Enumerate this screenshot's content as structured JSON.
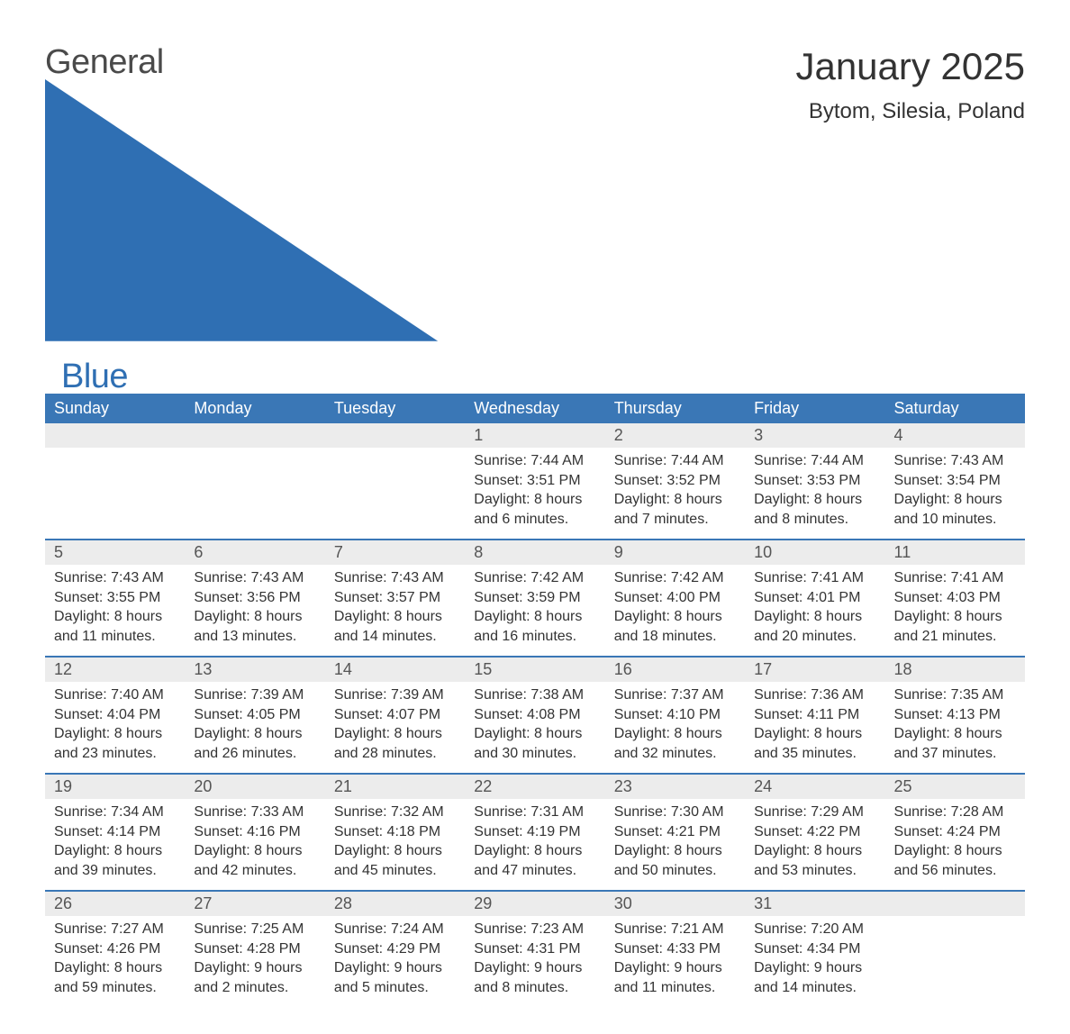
{
  "logo": {
    "word1": "General",
    "word2": "Blue"
  },
  "title": "January 2025",
  "location": "Bytom, Silesia, Poland",
  "colors": {
    "header_bg": "#3a77b6",
    "header_text": "#ffffff",
    "daynum_bg": "#ececec",
    "daynum_text": "#555555",
    "body_text": "#333333",
    "page_bg": "#ffffff",
    "logo_gray": "#4a4a4a",
    "logo_blue": "#2f6fb3"
  },
  "fonts": {
    "title_size_pt": 42,
    "location_size_pt": 24,
    "header_size_pt": 18,
    "daynum_size_pt": 18,
    "body_size_pt": 16,
    "family": "Arial"
  },
  "day_headers": [
    "Sunday",
    "Monday",
    "Tuesday",
    "Wednesday",
    "Thursday",
    "Friday",
    "Saturday"
  ],
  "weeks": [
    [
      null,
      null,
      null,
      {
        "n": "1",
        "sunrise": "Sunrise: 7:44 AM",
        "sunset": "Sunset: 3:51 PM",
        "d1": "Daylight: 8 hours",
        "d2": "and 6 minutes."
      },
      {
        "n": "2",
        "sunrise": "Sunrise: 7:44 AM",
        "sunset": "Sunset: 3:52 PM",
        "d1": "Daylight: 8 hours",
        "d2": "and 7 minutes."
      },
      {
        "n": "3",
        "sunrise": "Sunrise: 7:44 AM",
        "sunset": "Sunset: 3:53 PM",
        "d1": "Daylight: 8 hours",
        "d2": "and 8 minutes."
      },
      {
        "n": "4",
        "sunrise": "Sunrise: 7:43 AM",
        "sunset": "Sunset: 3:54 PM",
        "d1": "Daylight: 8 hours",
        "d2": "and 10 minutes."
      }
    ],
    [
      {
        "n": "5",
        "sunrise": "Sunrise: 7:43 AM",
        "sunset": "Sunset: 3:55 PM",
        "d1": "Daylight: 8 hours",
        "d2": "and 11 minutes."
      },
      {
        "n": "6",
        "sunrise": "Sunrise: 7:43 AM",
        "sunset": "Sunset: 3:56 PM",
        "d1": "Daylight: 8 hours",
        "d2": "and 13 minutes."
      },
      {
        "n": "7",
        "sunrise": "Sunrise: 7:43 AM",
        "sunset": "Sunset: 3:57 PM",
        "d1": "Daylight: 8 hours",
        "d2": "and 14 minutes."
      },
      {
        "n": "8",
        "sunrise": "Sunrise: 7:42 AM",
        "sunset": "Sunset: 3:59 PM",
        "d1": "Daylight: 8 hours",
        "d2": "and 16 minutes."
      },
      {
        "n": "9",
        "sunrise": "Sunrise: 7:42 AM",
        "sunset": "Sunset: 4:00 PM",
        "d1": "Daylight: 8 hours",
        "d2": "and 18 minutes."
      },
      {
        "n": "10",
        "sunrise": "Sunrise: 7:41 AM",
        "sunset": "Sunset: 4:01 PM",
        "d1": "Daylight: 8 hours",
        "d2": "and 20 minutes."
      },
      {
        "n": "11",
        "sunrise": "Sunrise: 7:41 AM",
        "sunset": "Sunset: 4:03 PM",
        "d1": "Daylight: 8 hours",
        "d2": "and 21 minutes."
      }
    ],
    [
      {
        "n": "12",
        "sunrise": "Sunrise: 7:40 AM",
        "sunset": "Sunset: 4:04 PM",
        "d1": "Daylight: 8 hours",
        "d2": "and 23 minutes."
      },
      {
        "n": "13",
        "sunrise": "Sunrise: 7:39 AM",
        "sunset": "Sunset: 4:05 PM",
        "d1": "Daylight: 8 hours",
        "d2": "and 26 minutes."
      },
      {
        "n": "14",
        "sunrise": "Sunrise: 7:39 AM",
        "sunset": "Sunset: 4:07 PM",
        "d1": "Daylight: 8 hours",
        "d2": "and 28 minutes."
      },
      {
        "n": "15",
        "sunrise": "Sunrise: 7:38 AM",
        "sunset": "Sunset: 4:08 PM",
        "d1": "Daylight: 8 hours",
        "d2": "and 30 minutes."
      },
      {
        "n": "16",
        "sunrise": "Sunrise: 7:37 AM",
        "sunset": "Sunset: 4:10 PM",
        "d1": "Daylight: 8 hours",
        "d2": "and 32 minutes."
      },
      {
        "n": "17",
        "sunrise": "Sunrise: 7:36 AM",
        "sunset": "Sunset: 4:11 PM",
        "d1": "Daylight: 8 hours",
        "d2": "and 35 minutes."
      },
      {
        "n": "18",
        "sunrise": "Sunrise: 7:35 AM",
        "sunset": "Sunset: 4:13 PM",
        "d1": "Daylight: 8 hours",
        "d2": "and 37 minutes."
      }
    ],
    [
      {
        "n": "19",
        "sunrise": "Sunrise: 7:34 AM",
        "sunset": "Sunset: 4:14 PM",
        "d1": "Daylight: 8 hours",
        "d2": "and 39 minutes."
      },
      {
        "n": "20",
        "sunrise": "Sunrise: 7:33 AM",
        "sunset": "Sunset: 4:16 PM",
        "d1": "Daylight: 8 hours",
        "d2": "and 42 minutes."
      },
      {
        "n": "21",
        "sunrise": "Sunrise: 7:32 AM",
        "sunset": "Sunset: 4:18 PM",
        "d1": "Daylight: 8 hours",
        "d2": "and 45 minutes."
      },
      {
        "n": "22",
        "sunrise": "Sunrise: 7:31 AM",
        "sunset": "Sunset: 4:19 PM",
        "d1": "Daylight: 8 hours",
        "d2": "and 47 minutes."
      },
      {
        "n": "23",
        "sunrise": "Sunrise: 7:30 AM",
        "sunset": "Sunset: 4:21 PM",
        "d1": "Daylight: 8 hours",
        "d2": "and 50 minutes."
      },
      {
        "n": "24",
        "sunrise": "Sunrise: 7:29 AM",
        "sunset": "Sunset: 4:22 PM",
        "d1": "Daylight: 8 hours",
        "d2": "and 53 minutes."
      },
      {
        "n": "25",
        "sunrise": "Sunrise: 7:28 AM",
        "sunset": "Sunset: 4:24 PM",
        "d1": "Daylight: 8 hours",
        "d2": "and 56 minutes."
      }
    ],
    [
      {
        "n": "26",
        "sunrise": "Sunrise: 7:27 AM",
        "sunset": "Sunset: 4:26 PM",
        "d1": "Daylight: 8 hours",
        "d2": "and 59 minutes."
      },
      {
        "n": "27",
        "sunrise": "Sunrise: 7:25 AM",
        "sunset": "Sunset: 4:28 PM",
        "d1": "Daylight: 9 hours",
        "d2": "and 2 minutes."
      },
      {
        "n": "28",
        "sunrise": "Sunrise: 7:24 AM",
        "sunset": "Sunset: 4:29 PM",
        "d1": "Daylight: 9 hours",
        "d2": "and 5 minutes."
      },
      {
        "n": "29",
        "sunrise": "Sunrise: 7:23 AM",
        "sunset": "Sunset: 4:31 PM",
        "d1": "Daylight: 9 hours",
        "d2": "and 8 minutes."
      },
      {
        "n": "30",
        "sunrise": "Sunrise: 7:21 AM",
        "sunset": "Sunset: 4:33 PM",
        "d1": "Daylight: 9 hours",
        "d2": "and 11 minutes."
      },
      {
        "n": "31",
        "sunrise": "Sunrise: 7:20 AM",
        "sunset": "Sunset: 4:34 PM",
        "d1": "Daylight: 9 hours",
        "d2": "and 14 minutes."
      },
      null
    ]
  ]
}
